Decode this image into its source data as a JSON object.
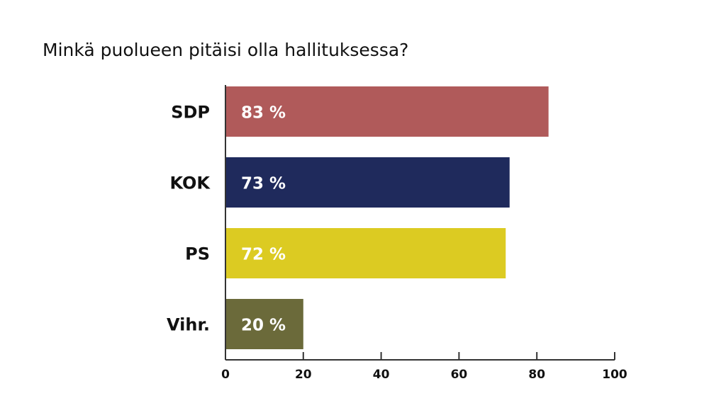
{
  "chart_data": {
    "type": "bar",
    "orientation": "horizontal",
    "title": "Minkä puolueen pitäisi olla hallituksessa?",
    "categories": [
      "SDP",
      "KOK",
      "PS",
      "Vihr."
    ],
    "values": [
      83,
      73,
      72,
      20
    ],
    "data_labels": [
      "83 %",
      "73 %",
      "72 %",
      "20 %"
    ],
    "colors": [
      "#b05a5a",
      "#1f2a5c",
      "#dccb22",
      "#6b6a3a"
    ],
    "xlim": [
      0,
      100
    ],
    "xticks": [
      0,
      20,
      40,
      60,
      80,
      100
    ],
    "xlabel": "",
    "ylabel": "",
    "grid": false
  }
}
